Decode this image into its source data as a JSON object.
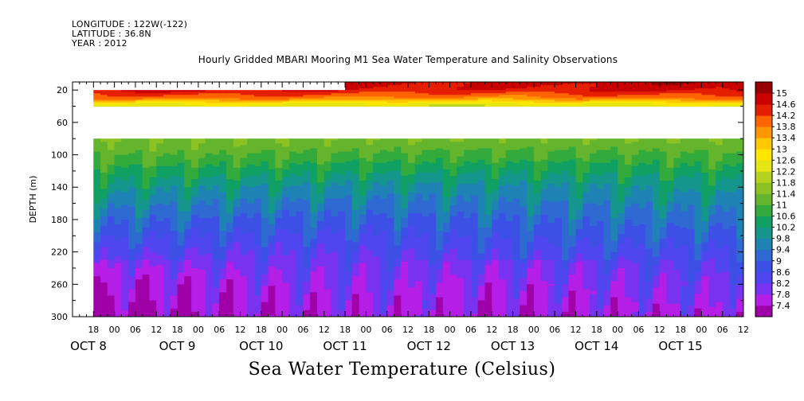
{
  "header": {
    "longitude": "LONGITUDE : 122W(-122)",
    "latitude": "LATITUDE : 36.8N",
    "year": "YEAR : 2012",
    "title": "Hourly Gridded MBARI Mooring M1 Sea Water Temperature and Salinity Observations"
  },
  "chart_data": {
    "type": "heatmap",
    "title": "Hourly Gridded MBARI Mooring M1 Sea Water Temperature and Salinity Observations",
    "xlabel": "",
    "ylabel": "DEPTH (m)",
    "colorbar_label": "Sea Water Temperature (Celsius)",
    "x_hours_range": [
      "OCT 7 18:00",
      "OCT 15 18:00"
    ],
    "x_hour_ticks": [
      "18",
      "00",
      "06",
      "12",
      "18",
      "00",
      "06",
      "12",
      "18",
      "00",
      "06",
      "12",
      "18",
      "00",
      "06",
      "12",
      "18",
      "00",
      "06",
      "12",
      "18",
      "00",
      "06",
      "12",
      "18",
      "00",
      "06",
      "12",
      "18",
      "00",
      "06",
      "12"
    ],
    "x_day_labels": [
      "OCT 8",
      "OCT 9",
      "OCT 10",
      "OCT 11",
      "OCT 12",
      "OCT 13",
      "OCT 14",
      "OCT 15"
    ],
    "x_day_label_prefix": "OCT",
    "y_ticks": [
      20,
      60,
      100,
      140,
      180,
      220,
      260,
      300
    ],
    "ylim": [
      300,
      10
    ],
    "colorbar_levels": [
      7.4,
      7.8,
      8.2,
      8.6,
      9,
      9.4,
      9.8,
      10.2,
      10.6,
      11,
      11.4,
      11.8,
      12.2,
      12.6,
      13,
      13.4,
      13.8,
      14.2,
      14.6,
      15
    ],
    "colorbar_labels": [
      "15",
      "14.6",
      "14.2",
      "13.8",
      "13.4",
      "13",
      "12.6",
      "12.2",
      "11.8",
      "11.4",
      "11",
      "10.6",
      "10.2",
      "9.8",
      "9.4",
      "9",
      "8.6",
      "8.2",
      "7.8",
      "7.4"
    ],
    "data_start": "OCT 8 00:00",
    "no_data_depth_band_m": [
      40,
      80
    ],
    "surface_layer_start_depth_until_oct10_23h_m": 20,
    "depth_profile_typical_celsius": [
      {
        "depth": 10,
        "temp": 14.8
      },
      {
        "depth": 20,
        "temp": 14.6
      },
      {
        "depth": 30,
        "temp": 13.8
      },
      {
        "depth": 38,
        "temp": 12.4
      },
      {
        "depth": 80,
        "temp": 11.4
      },
      {
        "depth": 100,
        "temp": 11.0
      },
      {
        "depth": 140,
        "temp": 10.0
      },
      {
        "depth": 180,
        "temp": 9.2
      },
      {
        "depth": 220,
        "temp": 8.5
      },
      {
        "depth": 260,
        "temp": 8.0
      },
      {
        "depth": 300,
        "temp": 7.7
      }
    ],
    "colors": [
      "#a000a8",
      "#b41ee6",
      "#7832f0",
      "#5046f0",
      "#3c50e6",
      "#2f6ad2",
      "#1e82b4",
      "#14968c",
      "#10a064",
      "#32aa3c",
      "#64b42d",
      "#8cc323",
      "#b4d21e",
      "#e6e614",
      "#ffe600",
      "#ffc800",
      "#ff9600",
      "#ff6400",
      "#e61e00",
      "#c80000",
      "#960000"
    ]
  }
}
